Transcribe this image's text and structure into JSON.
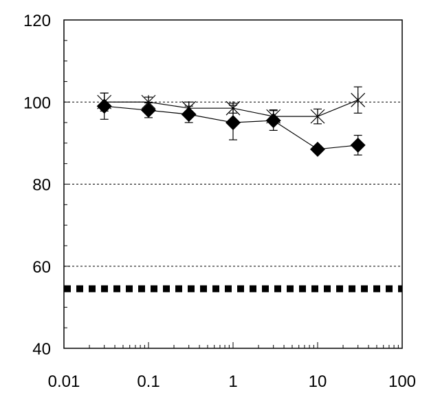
{
  "chart_data": {
    "type": "line",
    "title": "",
    "xlabel": "",
    "ylabel": "",
    "x_scale": "log",
    "xlim": [
      0.01,
      100
    ],
    "ylim": [
      40,
      120
    ],
    "x_tick_labels": [
      "0.01",
      "0.1",
      "1",
      "10",
      "100"
    ],
    "x_ticks": [
      0.01,
      0.1,
      1,
      10,
      100
    ],
    "y_tick_labels": [
      "40",
      "60",
      "80",
      "100",
      "120"
    ],
    "y_ticks": [
      40,
      60,
      80,
      100,
      120
    ],
    "gridlines_y": [
      60,
      80,
      100
    ],
    "grid_style": "dotted",
    "legend": "none",
    "x": [
      0.03,
      0.1,
      0.3,
      1,
      3,
      10,
      30
    ],
    "series": [
      {
        "marker": "asterisk",
        "color": "#000000",
        "values": [
          100,
          100,
          98.5,
          98.5,
          96.5,
          96.5,
          100.5
        ],
        "errors": [
          2.2,
          1.2,
          1.5,
          1.2,
          1.6,
          1.8,
          3.2
        ]
      },
      {
        "marker": "diamond",
        "color": "#000000",
        "values": [
          99,
          98,
          97,
          95,
          95.5,
          88.5,
          89.5
        ],
        "errors": [
          3.2,
          1.8,
          2.0,
          4.2,
          2.4,
          0.8,
          2.4
        ]
      }
    ],
    "reference_line": {
      "y": 54.5,
      "style": "thick-dashed",
      "color": "#000000"
    }
  }
}
